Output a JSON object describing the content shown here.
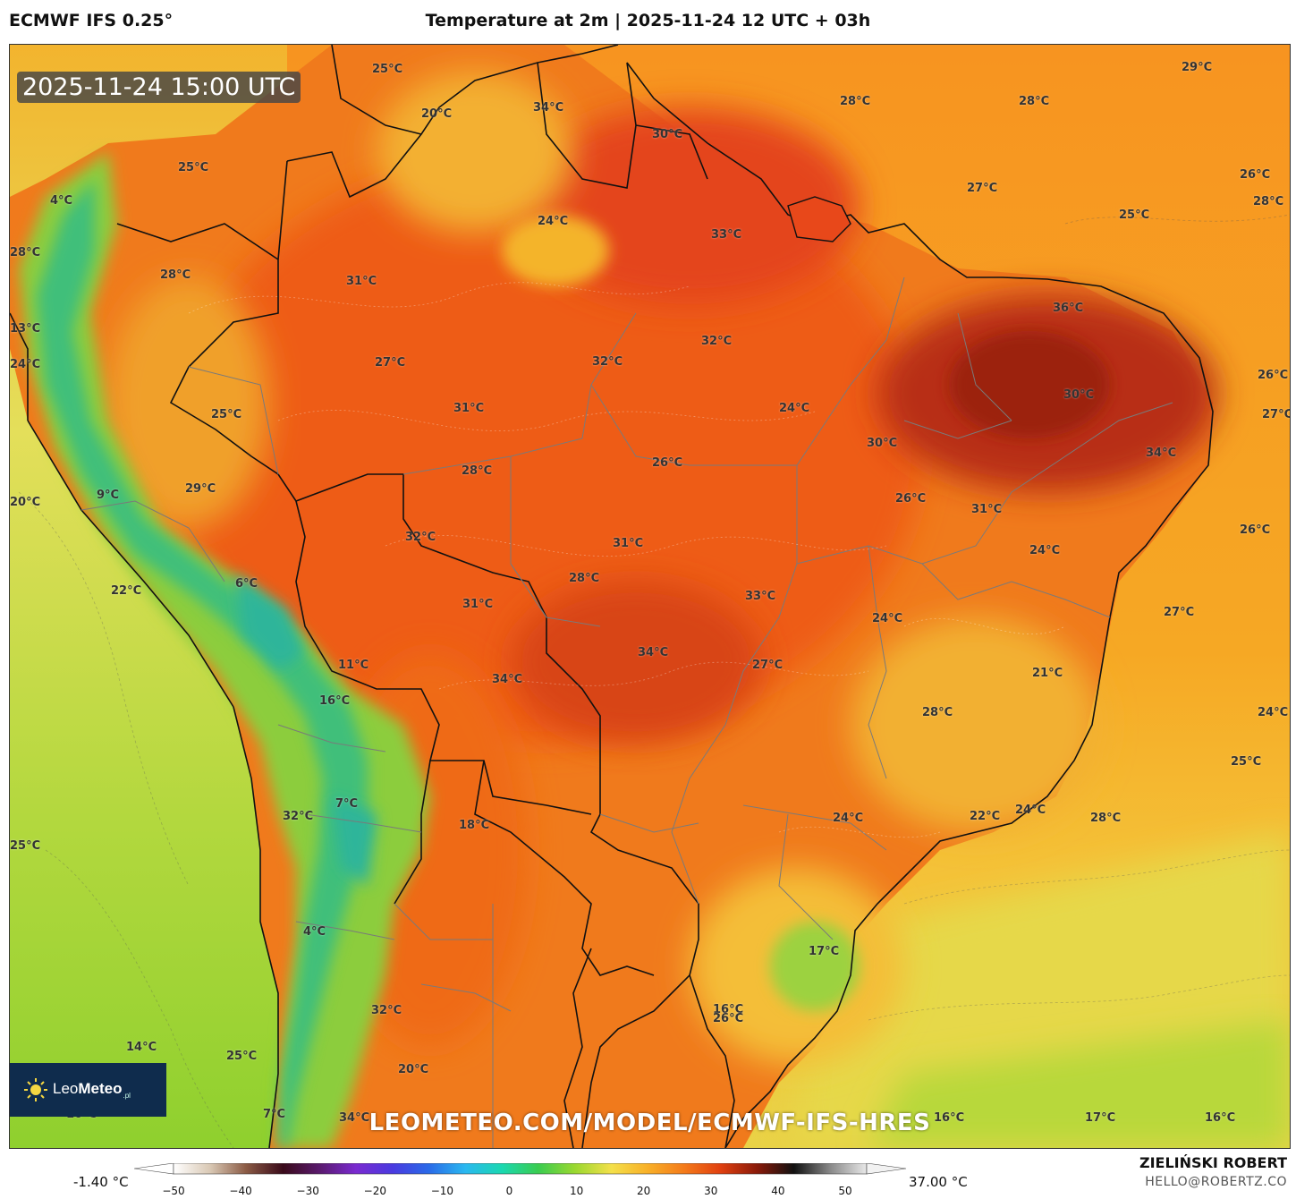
{
  "header": {
    "model": "ECMWF IFS 0.25°",
    "title": "Temperature at 2m | 2025-11-24 12 UTC + 03h"
  },
  "map": {
    "timestamp": "2025-11-24 15:00 UTC",
    "watermark": "LEOMETEO.COM/MODEL/ECMWF-IFS-HRES",
    "logo": {
      "name_part1": "Leo",
      "name_part2": "Meteo",
      "suffix": ".pl",
      "icon": "sun-icon"
    },
    "temperature_labels": [
      "25°C",
      "20°C",
      "34°C",
      "30°C",
      "29°C",
      "28°C",
      "28°C",
      "25°C",
      "4°C",
      "24°C",
      "27°C",
      "33°C",
      "25°C",
      "26°C",
      "28°C",
      "28°C",
      "28°C",
      "31°C",
      "36°C",
      "13°C",
      "24°C",
      "32°C",
      "27°C",
      "32°C",
      "26°C",
      "31°C",
      "24°C",
      "30°C",
      "25°C",
      "27°C",
      "34°C",
      "26°C",
      "30°C",
      "28°C",
      "29°C",
      "9°C",
      "20°C",
      "26°C",
      "31°C",
      "32°C",
      "24°C",
      "31°C",
      "26°C",
      "6°C",
      "22°C",
      "28°C",
      "33°C",
      "24°C",
      "27°C",
      "31°C",
      "11°C",
      "34°C",
      "34°C",
      "27°C",
      "21°C",
      "16°C",
      "28°C",
      "24°C",
      "28°C",
      "25°C",
      "7°C",
      "32°C",
      "18°C",
      "24°C",
      "22°C",
      "24°C",
      "25°C",
      "17°C",
      "16°C",
      "4°C",
      "32°C",
      "26°C",
      "14°C",
      "25°C",
      "20°C",
      "34°C",
      "7°C",
      "16°C",
      "17°C",
      "16°C",
      "16°C"
    ]
  },
  "colorbar": {
    "min_label": "-1.40 °C",
    "max_label": "37.00 °C",
    "ticks": [
      "−50",
      "−40",
      "−30",
      "−20",
      "−10",
      "0",
      "10",
      "20",
      "30",
      "40",
      "50"
    ],
    "stops": [
      "#ffffff",
      "#d9c8b4",
      "#8a5a44",
      "#3a0a1a",
      "#5a1a6e",
      "#7a2ad0",
      "#4a3ae0",
      "#2a6ae8",
      "#2ab8f0",
      "#1ad8b0",
      "#3acc50",
      "#9ad830",
      "#f4e04a",
      "#f8b028",
      "#f47a1a",
      "#e04010",
      "#8a1a0a",
      "#111111",
      "#888888",
      "#e8e8e8"
    ],
    "map_palette": {
      "very_hot": "#b42a10",
      "hot": "#ee5a18",
      "warm": "#f4861c",
      "mild": "#f6b02e",
      "cool": "#f2dc52",
      "green": "#8fd23a",
      "cold": "#3cc080",
      "ocean_warm": "#f79a20"
    }
  },
  "credits": {
    "author": "ZIELIŃSKI ROBERT",
    "email": "HELLO@ROBERTZ.CO"
  }
}
